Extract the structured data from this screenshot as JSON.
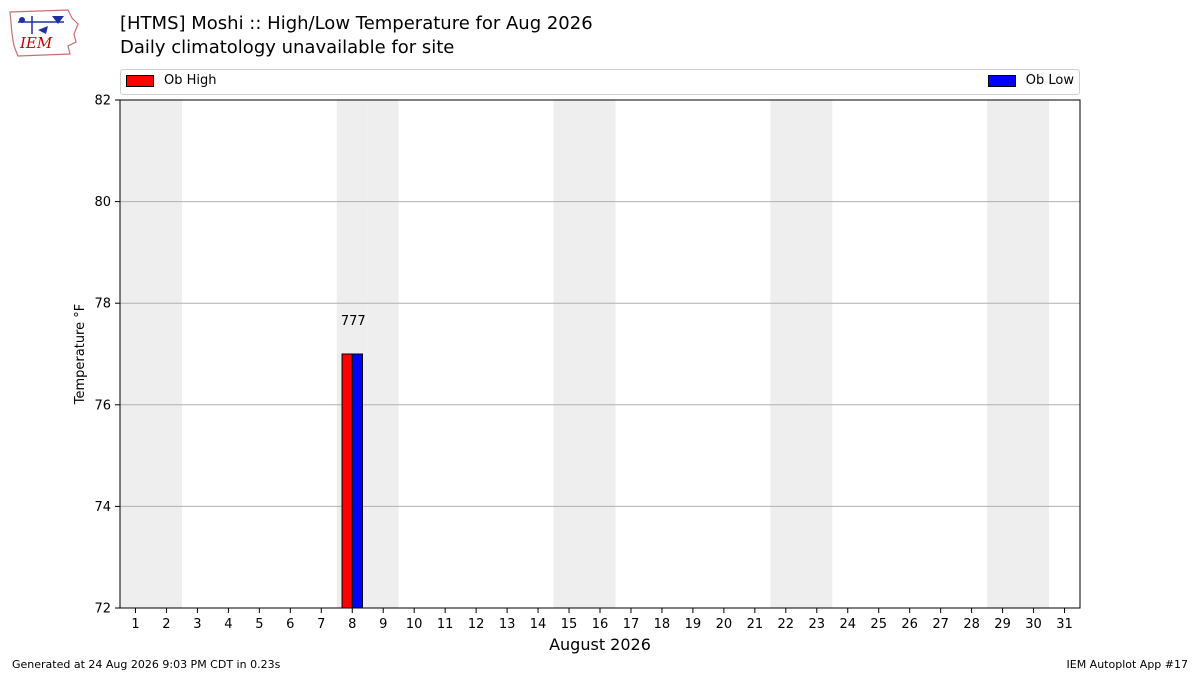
{
  "header": {
    "logo_text": "IEM",
    "title": "[HTMS] Moshi :: High/Low Temperature for Aug 2026",
    "subtitle": "Daily climatology unavailable for site"
  },
  "legend": {
    "high_label": "Ob High",
    "low_label": "Ob Low"
  },
  "footer": {
    "generated": "Generated at 24 Aug 2026 9:03 PM CDT in 0.23s",
    "app": "IEM Autoplot App #17"
  },
  "colors": {
    "high": "#ff0000",
    "low": "#0000ff",
    "weekend_band": "#eeeeee",
    "grid": "#b0b0b0"
  },
  "chart_data": {
    "type": "bar",
    "title": "[HTMS] Moshi :: High/Low Temperature for Aug 2026",
    "subtitle": "Daily climatology unavailable for site",
    "xlabel": "August 2026",
    "ylabel": "Temperature °F",
    "x": [
      1,
      2,
      3,
      4,
      5,
      6,
      7,
      8,
      9,
      10,
      11,
      12,
      13,
      14,
      15,
      16,
      17,
      18,
      19,
      20,
      21,
      22,
      23,
      24,
      25,
      26,
      27,
      28,
      29,
      30,
      31
    ],
    "xlim": [
      0.5,
      31.5
    ],
    "ylim": [
      72,
      82
    ],
    "yticks": [
      72,
      74,
      76,
      78,
      80,
      82
    ],
    "grid": "horizontal",
    "legend_placement": "top (above plot)",
    "weekend_shading_days": [
      1,
      2,
      8,
      9,
      15,
      16,
      22,
      23,
      29,
      30
    ],
    "series": [
      {
        "name": "Ob High",
        "color": "#ff0000",
        "points": [
          {
            "day": 8,
            "value": 77
          }
        ]
      },
      {
        "name": "Ob Low",
        "color": "#0000ff",
        "points": [
          {
            "day": 8,
            "value": 77
          }
        ]
      }
    ],
    "annotations": [
      {
        "day": 8,
        "text": "777"
      }
    ]
  }
}
